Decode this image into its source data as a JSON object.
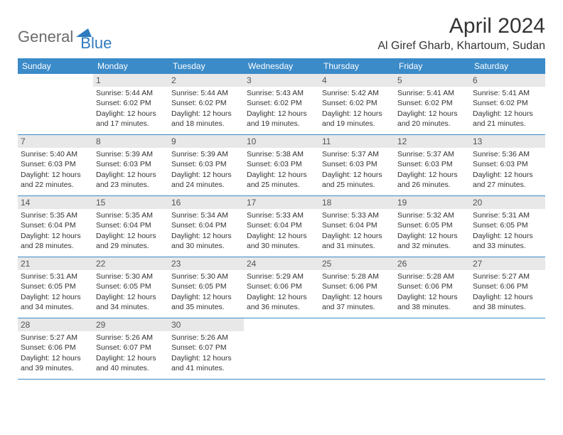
{
  "logo": {
    "text1": "General",
    "text2": "Blue"
  },
  "title": "April 2024",
  "location": "Al Giref Gharb, Khartoum, Sudan",
  "colors": {
    "header_bg": "#3b8bc9",
    "header_text": "#ffffff",
    "daynum_bg": "#e8e8e8",
    "border": "#3b8bc9",
    "logo_gray": "#6b6b6b",
    "logo_blue": "#2f7bbf",
    "body_text": "#333333"
  },
  "typography": {
    "title_fontsize": 30,
    "location_fontsize": 16,
    "dayheader_fontsize": 12,
    "cell_fontsize": 10.5,
    "logo_fontsize": 22
  },
  "day_headers": [
    "Sunday",
    "Monday",
    "Tuesday",
    "Wednesday",
    "Thursday",
    "Friday",
    "Saturday"
  ],
  "weeks": [
    [
      null,
      {
        "n": "1",
        "sunrise": "Sunrise: 5:44 AM",
        "sunset": "Sunset: 6:02 PM",
        "day1": "Daylight: 12 hours",
        "day2": "and 17 minutes."
      },
      {
        "n": "2",
        "sunrise": "Sunrise: 5:44 AM",
        "sunset": "Sunset: 6:02 PM",
        "day1": "Daylight: 12 hours",
        "day2": "and 18 minutes."
      },
      {
        "n": "3",
        "sunrise": "Sunrise: 5:43 AM",
        "sunset": "Sunset: 6:02 PM",
        "day1": "Daylight: 12 hours",
        "day2": "and 19 minutes."
      },
      {
        "n": "4",
        "sunrise": "Sunrise: 5:42 AM",
        "sunset": "Sunset: 6:02 PM",
        "day1": "Daylight: 12 hours",
        "day2": "and 19 minutes."
      },
      {
        "n": "5",
        "sunrise": "Sunrise: 5:41 AM",
        "sunset": "Sunset: 6:02 PM",
        "day1": "Daylight: 12 hours",
        "day2": "and 20 minutes."
      },
      {
        "n": "6",
        "sunrise": "Sunrise: 5:41 AM",
        "sunset": "Sunset: 6:02 PM",
        "day1": "Daylight: 12 hours",
        "day2": "and 21 minutes."
      }
    ],
    [
      {
        "n": "7",
        "sunrise": "Sunrise: 5:40 AM",
        "sunset": "Sunset: 6:03 PM",
        "day1": "Daylight: 12 hours",
        "day2": "and 22 minutes."
      },
      {
        "n": "8",
        "sunrise": "Sunrise: 5:39 AM",
        "sunset": "Sunset: 6:03 PM",
        "day1": "Daylight: 12 hours",
        "day2": "and 23 minutes."
      },
      {
        "n": "9",
        "sunrise": "Sunrise: 5:39 AM",
        "sunset": "Sunset: 6:03 PM",
        "day1": "Daylight: 12 hours",
        "day2": "and 24 minutes."
      },
      {
        "n": "10",
        "sunrise": "Sunrise: 5:38 AM",
        "sunset": "Sunset: 6:03 PM",
        "day1": "Daylight: 12 hours",
        "day2": "and 25 minutes."
      },
      {
        "n": "11",
        "sunrise": "Sunrise: 5:37 AM",
        "sunset": "Sunset: 6:03 PM",
        "day1": "Daylight: 12 hours",
        "day2": "and 25 minutes."
      },
      {
        "n": "12",
        "sunrise": "Sunrise: 5:37 AM",
        "sunset": "Sunset: 6:03 PM",
        "day1": "Daylight: 12 hours",
        "day2": "and 26 minutes."
      },
      {
        "n": "13",
        "sunrise": "Sunrise: 5:36 AM",
        "sunset": "Sunset: 6:03 PM",
        "day1": "Daylight: 12 hours",
        "day2": "and 27 minutes."
      }
    ],
    [
      {
        "n": "14",
        "sunrise": "Sunrise: 5:35 AM",
        "sunset": "Sunset: 6:04 PM",
        "day1": "Daylight: 12 hours",
        "day2": "and 28 minutes."
      },
      {
        "n": "15",
        "sunrise": "Sunrise: 5:35 AM",
        "sunset": "Sunset: 6:04 PM",
        "day1": "Daylight: 12 hours",
        "day2": "and 29 minutes."
      },
      {
        "n": "16",
        "sunrise": "Sunrise: 5:34 AM",
        "sunset": "Sunset: 6:04 PM",
        "day1": "Daylight: 12 hours",
        "day2": "and 30 minutes."
      },
      {
        "n": "17",
        "sunrise": "Sunrise: 5:33 AM",
        "sunset": "Sunset: 6:04 PM",
        "day1": "Daylight: 12 hours",
        "day2": "and 30 minutes."
      },
      {
        "n": "18",
        "sunrise": "Sunrise: 5:33 AM",
        "sunset": "Sunset: 6:04 PM",
        "day1": "Daylight: 12 hours",
        "day2": "and 31 minutes."
      },
      {
        "n": "19",
        "sunrise": "Sunrise: 5:32 AM",
        "sunset": "Sunset: 6:05 PM",
        "day1": "Daylight: 12 hours",
        "day2": "and 32 minutes."
      },
      {
        "n": "20",
        "sunrise": "Sunrise: 5:31 AM",
        "sunset": "Sunset: 6:05 PM",
        "day1": "Daylight: 12 hours",
        "day2": "and 33 minutes."
      }
    ],
    [
      {
        "n": "21",
        "sunrise": "Sunrise: 5:31 AM",
        "sunset": "Sunset: 6:05 PM",
        "day1": "Daylight: 12 hours",
        "day2": "and 34 minutes."
      },
      {
        "n": "22",
        "sunrise": "Sunrise: 5:30 AM",
        "sunset": "Sunset: 6:05 PM",
        "day1": "Daylight: 12 hours",
        "day2": "and 34 minutes."
      },
      {
        "n": "23",
        "sunrise": "Sunrise: 5:30 AM",
        "sunset": "Sunset: 6:05 PM",
        "day1": "Daylight: 12 hours",
        "day2": "and 35 minutes."
      },
      {
        "n": "24",
        "sunrise": "Sunrise: 5:29 AM",
        "sunset": "Sunset: 6:06 PM",
        "day1": "Daylight: 12 hours",
        "day2": "and 36 minutes."
      },
      {
        "n": "25",
        "sunrise": "Sunrise: 5:28 AM",
        "sunset": "Sunset: 6:06 PM",
        "day1": "Daylight: 12 hours",
        "day2": "and 37 minutes."
      },
      {
        "n": "26",
        "sunrise": "Sunrise: 5:28 AM",
        "sunset": "Sunset: 6:06 PM",
        "day1": "Daylight: 12 hours",
        "day2": "and 38 minutes."
      },
      {
        "n": "27",
        "sunrise": "Sunrise: 5:27 AM",
        "sunset": "Sunset: 6:06 PM",
        "day1": "Daylight: 12 hours",
        "day2": "and 38 minutes."
      }
    ],
    [
      {
        "n": "28",
        "sunrise": "Sunrise: 5:27 AM",
        "sunset": "Sunset: 6:06 PM",
        "day1": "Daylight: 12 hours",
        "day2": "and 39 minutes."
      },
      {
        "n": "29",
        "sunrise": "Sunrise: 5:26 AM",
        "sunset": "Sunset: 6:07 PM",
        "day1": "Daylight: 12 hours",
        "day2": "and 40 minutes."
      },
      {
        "n": "30",
        "sunrise": "Sunrise: 5:26 AM",
        "sunset": "Sunset: 6:07 PM",
        "day1": "Daylight: 12 hours",
        "day2": "and 41 minutes."
      },
      null,
      null,
      null,
      null
    ]
  ]
}
